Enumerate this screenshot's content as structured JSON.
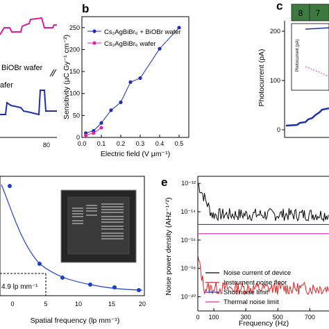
{
  "panels": {
    "b": "b",
    "c": "c",
    "e": "e"
  },
  "panel_a_partial": {
    "label": "BiOBr wafer",
    "label2": "afer",
    "x_tick": "80",
    "colors": {
      "pink": "#e0189a",
      "blue": "#1a2fb0"
    }
  },
  "panel_c_partial": {
    "ylabel": "Photocurrent (pA)",
    "ticks": [
      "200",
      "100",
      "0"
    ],
    "tabs": [
      "8",
      "7"
    ],
    "inset_ylabel": "Photocurrent (pA)",
    "tab_color": "#3d7a40"
  },
  "panel_d_partial": {
    "xlabel": "Spatial frequency (lp mm⁻¹)",
    "annotation": "4.9 lp mm⁻¹",
    "x_ticks": [
      "0",
      "5",
      "10",
      "15",
      "20"
    ]
  },
  "chart_data": [
    {
      "type": "line",
      "panel": "b",
      "xlabel": "Electric field (V μm⁻¹)",
      "ylabel": "Sensitivity (μC Gy⁻¹ cm⁻²)",
      "xlim": [
        0,
        0.55
      ],
      "ylim": [
        0,
        275
      ],
      "x_ticks": [
        0.0,
        0.1,
        0.2,
        0.3,
        0.4,
        0.5
      ],
      "y_ticks": [
        0,
        50,
        100,
        150,
        200,
        250
      ],
      "x_tick_labels": [
        "0.0",
        "0.1",
        "0.2",
        "0.3",
        "0.4",
        "0.5"
      ],
      "y_tick_labels": [
        "0",
        "50",
        "100",
        "150",
        "200",
        "250"
      ],
      "legend_position": "top-left",
      "series": [
        {
          "name": "Cs₂AgBiBr₆ + BiOBr wafer",
          "color": "#1f2fb5",
          "x": [
            0.02,
            0.06,
            0.1,
            0.15,
            0.2,
            0.25,
            0.3,
            0.4,
            0.5
          ],
          "y": [
            10,
            15,
            33,
            62,
            80,
            126,
            135,
            202,
            250
          ]
        },
        {
          "name": "Cs₂AgBiBr₆ wafer",
          "color": "#e020b0",
          "x": [
            0.02,
            0.06,
            0.1
          ],
          "y": [
            5,
            10,
            22
          ]
        }
      ]
    },
    {
      "type": "line",
      "panel": "e",
      "xlabel": "Frequency (Hz)",
      "ylabel": "Noise power density (AHz⁻¹ᐟ²)",
      "xlim": [
        0,
        820
      ],
      "ylim_log10": [
        -21,
        -11.5
      ],
      "x_ticks": [
        0,
        100,
        300,
        500,
        700
      ],
      "x_tick_labels": [
        "0",
        "100",
        "300",
        "500",
        "700"
      ],
      "y_ticks_log10": [
        -12,
        -14,
        -16,
        -18,
        -20
      ],
      "y_tick_labels": [
        "10⁻¹²",
        "10⁻¹⁴",
        "10⁻¹⁶",
        "10⁻¹⁸",
        "10⁻²⁰"
      ],
      "legend_position": "bottom",
      "series": [
        {
          "name": "Noise current of device",
          "color": "#000000",
          "level_log10": -14.2
        },
        {
          "name": "Instrument noise floor",
          "color": "#e02020",
          "level_log10": -19.4
        },
        {
          "name": "Shot noise limit",
          "color": "#1a3fd0",
          "level_log10": -14.9
        },
        {
          "name": "Thermal noise limit",
          "color": "#e030b0",
          "level_log10": -15.55
        }
      ]
    }
  ]
}
